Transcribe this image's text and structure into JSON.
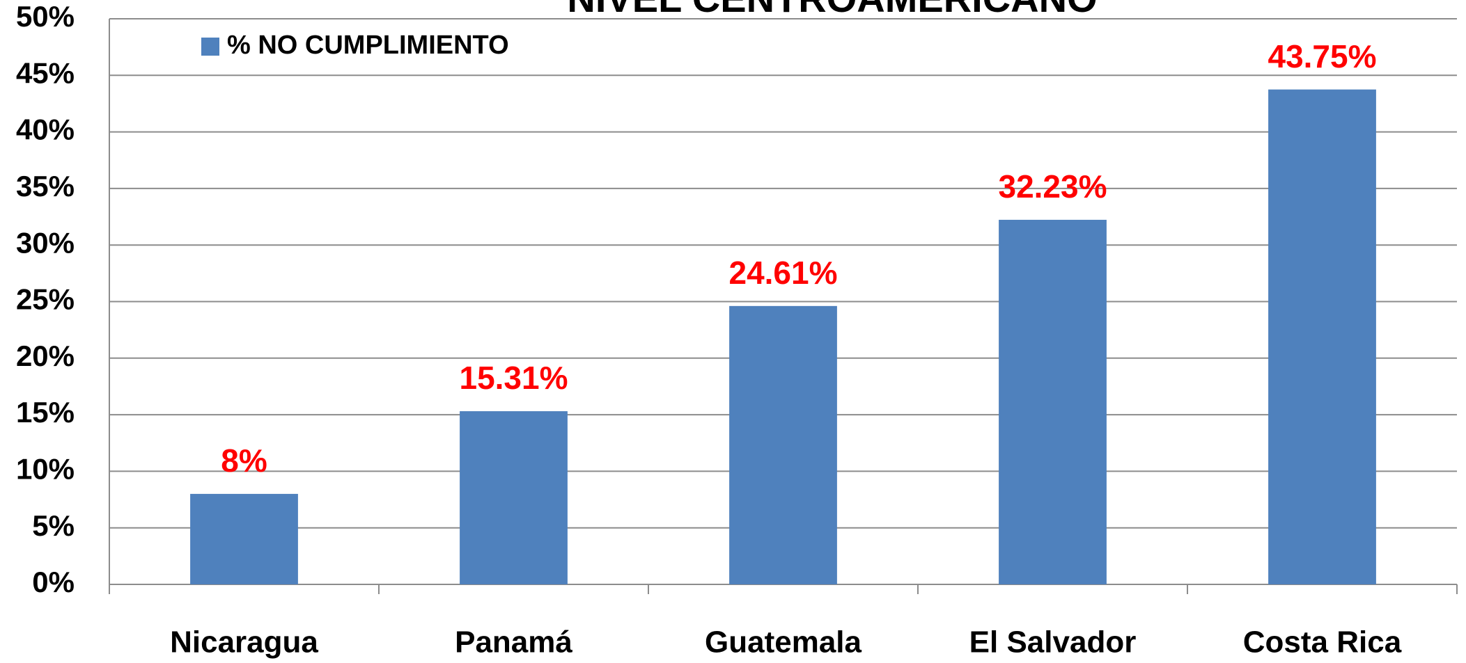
{
  "chart_data": {
    "type": "bar",
    "title": "NIVEL CENTROAMERICANO",
    "categories": [
      "Nicaragua",
      "Panamá",
      "Guatemala",
      "El Salvador",
      "Costa Rica"
    ],
    "series": [
      {
        "name": "% NO CUMPLIMIENTO",
        "color": "#4f81bd",
        "values": [
          8,
          15.31,
          24.61,
          32.23,
          43.75
        ],
        "value_labels": [
          "8%",
          "15.31%",
          "24.61%",
          "32.23%",
          "43.75%"
        ]
      }
    ],
    "ylim": [
      0,
      50
    ],
    "yticks": [
      {
        "value": 0,
        "label": "0%"
      },
      {
        "value": 5,
        "label": "5%"
      },
      {
        "value": 10,
        "label": "10%"
      },
      {
        "value": 15,
        "label": "15%"
      },
      {
        "value": 20,
        "label": "20%"
      },
      {
        "value": 25,
        "label": "25%"
      },
      {
        "value": 30,
        "label": "30%"
      },
      {
        "value": 35,
        "label": "35%"
      },
      {
        "value": 40,
        "label": "40%"
      },
      {
        "value": 45,
        "label": "45%"
      },
      {
        "value": 50,
        "label": "50%"
      }
    ],
    "grid": true,
    "legend": "top-left"
  }
}
